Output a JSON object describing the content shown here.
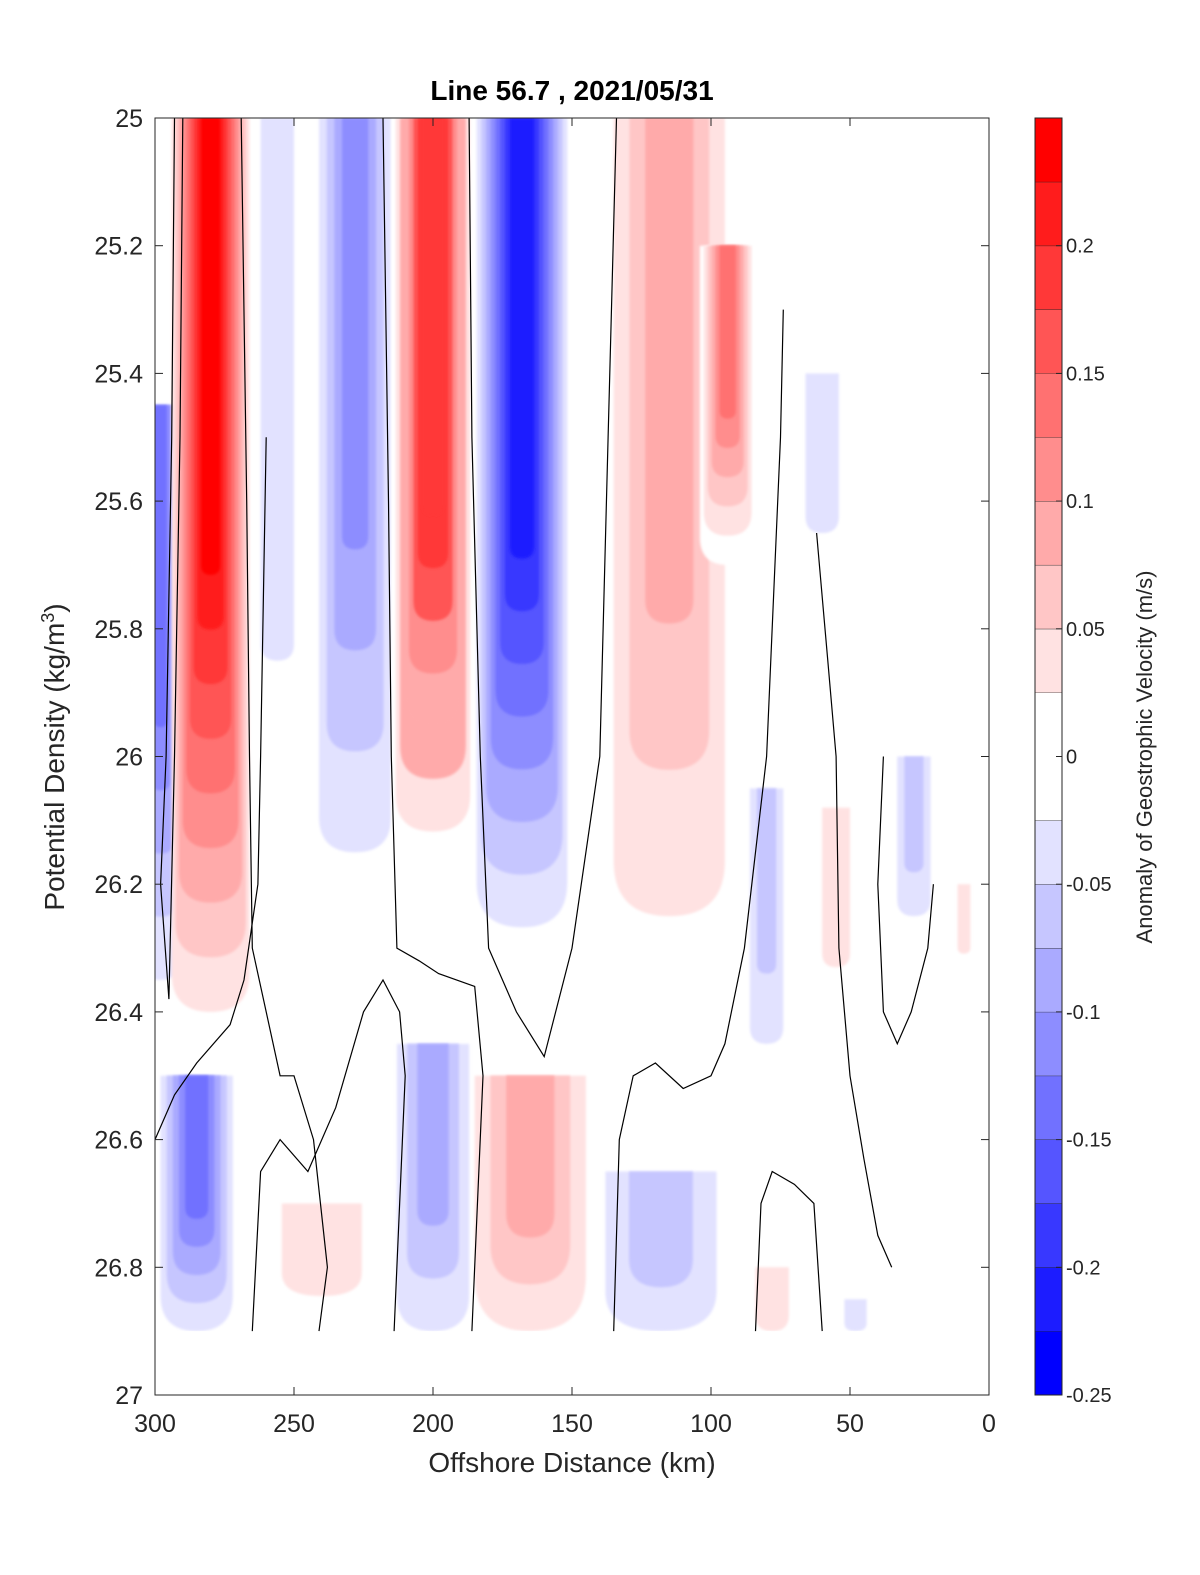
{
  "chart_data": {
    "type": "contourf",
    "title": "Line 56.7 , 2021/05/31",
    "xlabel": "Offshore Distance (km)",
    "ylabel_main": "Potential Density (kg/m",
    "ylabel_sup": "3",
    "ylabel_end": ")",
    "xlim": [
      300,
      0
    ],
    "ylim": [
      25,
      27
    ],
    "x_reversed": true,
    "y_reversed": true,
    "x_ticks": [
      {
        "value": 300,
        "label": "300"
      },
      {
        "value": 250,
        "label": "250"
      },
      {
        "value": 200,
        "label": "200"
      },
      {
        "value": 150,
        "label": "150"
      },
      {
        "value": 100,
        "label": "100"
      },
      {
        "value": 50,
        "label": "50"
      },
      {
        "value": 0,
        "label": "0"
      }
    ],
    "y_ticks": [
      {
        "value": 25.0,
        "label": "25"
      },
      {
        "value": 25.2,
        "label": "25.2"
      },
      {
        "value": 25.4,
        "label": "25.4"
      },
      {
        "value": 25.6,
        "label": "25.6"
      },
      {
        "value": 25.8,
        "label": "25.8"
      },
      {
        "value": 26.0,
        "label": "26"
      },
      {
        "value": 26.2,
        "label": "26.2"
      },
      {
        "value": 26.4,
        "label": "26.4"
      },
      {
        "value": 26.6,
        "label": "26.6"
      },
      {
        "value": 26.8,
        "label": "26.8"
      },
      {
        "value": 27.0,
        "label": "27"
      }
    ],
    "colorbar": {
      "label": "Anomaly of Geostrophic Velocity (m/s)",
      "clim": [
        -0.25,
        0.25
      ],
      "levels": [
        -0.25,
        -0.225,
        -0.2,
        -0.175,
        -0.15,
        -0.125,
        -0.1,
        -0.075,
        -0.05,
        -0.025,
        0.025,
        0.05,
        0.075,
        0.1,
        0.125,
        0.15,
        0.175,
        0.2,
        0.225,
        0.25
      ],
      "colors": [
        "#0000ff",
        "#1c1cff",
        "#3838ff",
        "#5555ff",
        "#7171ff",
        "#8d8dff",
        "#aaaaff",
        "#c6c6ff",
        "#e2e2ff",
        "#ffffff",
        "#ffe2e2",
        "#ffc6c6",
        "#ffaaaa",
        "#ff8d8d",
        "#ff7171",
        "#ff5555",
        "#ff3838",
        "#ff1c1c",
        "#ff0000"
      ],
      "ticks": [
        {
          "value": 0.2,
          "label": "0.2"
        },
        {
          "value": 0.15,
          "label": "0.15"
        },
        {
          "value": 0.1,
          "label": "0.1"
        },
        {
          "value": 0.05,
          "label": "0.05"
        },
        {
          "value": 0,
          "label": "0"
        },
        {
          "value": -0.05,
          "label": "-0.05"
        },
        {
          "value": -0.1,
          "label": "-0.1"
        },
        {
          "value": -0.15,
          "label": "-0.15"
        },
        {
          "value": -0.2,
          "label": "-0.2"
        },
        {
          "value": -0.25,
          "label": "-0.25"
        }
      ]
    },
    "data_extent": {
      "x": [
        300,
        0
      ],
      "y_bottom": 26.9
    },
    "features": [
      {
        "x": 298,
        "y_top": 25.45,
        "y_bottom": 26.35,
        "half_width": 7,
        "peak": -0.13
      },
      {
        "x": 280,
        "y_top": 25.0,
        "y_bottom": 26.4,
        "half_width": 14,
        "peak": 0.24
      },
      {
        "x": 256,
        "y_top": 25.0,
        "y_bottom": 25.85,
        "half_width": 6,
        "peak": -0.03
      },
      {
        "x": 228,
        "y_top": 25.0,
        "y_bottom": 26.15,
        "half_width": 13,
        "peak": -0.11
      },
      {
        "x": 200,
        "y_top": 25.0,
        "y_bottom": 26.2,
        "half_width": 15,
        "peak": 0.2
      },
      {
        "x": 168,
        "y_top": 25.0,
        "y_bottom": 26.35,
        "half_width": 18,
        "peak": -0.22
      },
      {
        "x": 115,
        "y_top": 25.0,
        "y_bottom": 26.25,
        "half_width": 20,
        "peak": 0.09
      },
      {
        "x": 94,
        "y_top": 25.2,
        "y_bottom": 25.7,
        "half_width": 10,
        "peak": 0.15
      },
      {
        "x": 60,
        "y_top": 25.4,
        "y_bottom": 25.65,
        "half_width": 6,
        "peak": -0.04
      },
      {
        "x": 80,
        "y_top": 26.05,
        "y_bottom": 26.45,
        "half_width": 6,
        "peak": -0.06
      },
      {
        "x": 55,
        "y_top": 26.08,
        "y_bottom": 26.33,
        "half_width": 5,
        "peak": 0.04
      },
      {
        "x": 27,
        "y_top": 26.0,
        "y_bottom": 26.25,
        "half_width": 6,
        "peak": -0.05
      },
      {
        "x": 9,
        "y_top": 26.2,
        "y_bottom": 26.35,
        "half_width": 4,
        "peak": 0.05
      },
      {
        "x": 285,
        "y_top": 26.5,
        "y_bottom": 26.9,
        "half_width": 13,
        "peak": -0.13
      },
      {
        "x": 240,
        "y_top": 26.7,
        "y_bottom": 26.9,
        "half_width": 25,
        "peak": 0.05
      },
      {
        "x": 200,
        "y_top": 26.45,
        "y_bottom": 26.9,
        "half_width": 13,
        "peak": -0.09
      },
      {
        "x": 165,
        "y_top": 26.5,
        "y_bottom": 26.9,
        "half_width": 20,
        "peak": 0.08
      },
      {
        "x": 118,
        "y_top": 26.65,
        "y_bottom": 26.9,
        "half_width": 20,
        "peak": -0.05
      },
      {
        "x": 78,
        "y_top": 26.8,
        "y_bottom": 26.9,
        "half_width": 6,
        "peak": 0.03
      },
      {
        "x": 48,
        "y_top": 26.85,
        "y_bottom": 26.9,
        "half_width": 4,
        "peak": -0.03
      }
    ],
    "zero_contours": [
      [
        [
          293,
          25.0
        ],
        [
          294,
          25.5
        ],
        [
          296,
          26.0
        ],
        [
          298,
          26.2
        ],
        [
          295,
          26.38
        ],
        [
          293,
          26.0
        ],
        [
          291,
          25.5
        ],
        [
          290,
          25.0
        ]
      ],
      [
        [
          269,
          25.0
        ],
        [
          267,
          25.6
        ],
        [
          266,
          26.0
        ],
        [
          265,
          26.3
        ],
        [
          260,
          26.4
        ],
        [
          255,
          26.5
        ],
        [
          250,
          26.5
        ],
        [
          243,
          26.6
        ],
        [
          238,
          26.8
        ],
        [
          241,
          26.9
        ]
      ],
      [
        [
          218,
          25.0
        ],
        [
          216,
          25.6
        ],
        [
          215,
          26.0
        ],
        [
          213,
          26.3
        ],
        [
          205,
          26.32
        ],
        [
          198,
          26.34
        ],
        [
          185,
          26.36
        ],
        [
          182,
          26.5
        ],
        [
          186,
          26.9
        ]
      ],
      [
        [
          187,
          25.0
        ],
        [
          186,
          25.5
        ],
        [
          183,
          26.0
        ],
        [
          180,
          26.3
        ],
        [
          170,
          26.4
        ],
        [
          160,
          26.47
        ],
        [
          150,
          26.3
        ],
        [
          140,
          26.0
        ],
        [
          137,
          25.5
        ],
        [
          134,
          25.0
        ]
      ],
      [
        [
          300,
          26.6
        ],
        [
          293,
          26.53
        ],
        [
          285,
          26.48
        ],
        [
          273,
          26.42
        ],
        [
          268,
          26.35
        ],
        [
          263,
          26.2
        ],
        [
          262,
          26.0
        ],
        [
          260,
          25.5
        ]
      ],
      [
        [
          265,
          26.9
        ],
        [
          262,
          26.65
        ],
        [
          255,
          26.6
        ],
        [
          245,
          26.65
        ],
        [
          235,
          26.55
        ],
        [
          225,
          26.4
        ],
        [
          218,
          26.35
        ],
        [
          212,
          26.4
        ],
        [
          210,
          26.5
        ],
        [
          214,
          26.9
        ]
      ],
      [
        [
          135,
          26.9
        ],
        [
          133,
          26.6
        ],
        [
          128,
          26.5
        ],
        [
          120,
          26.48
        ],
        [
          110,
          26.52
        ],
        [
          100,
          26.5
        ],
        [
          95,
          26.45
        ],
        [
          88,
          26.3
        ],
        [
          80,
          26.0
        ],
        [
          75,
          25.5
        ],
        [
          74,
          25.3
        ]
      ],
      [
        [
          62,
          25.65
        ],
        [
          58,
          25.85
        ],
        [
          55,
          26.0
        ],
        [
          54,
          26.3
        ],
        [
          50,
          26.5
        ],
        [
          45,
          26.63
        ],
        [
          40,
          26.75
        ],
        [
          35,
          26.8
        ]
      ],
      [
        [
          38,
          26.0
        ],
        [
          40,
          26.2
        ],
        [
          38,
          26.4
        ],
        [
          33,
          26.45
        ],
        [
          28,
          26.4
        ],
        [
          22,
          26.3
        ],
        [
          20,
          26.2
        ]
      ],
      [
        [
          84,
          26.9
        ],
        [
          82,
          26.7
        ],
        [
          78,
          26.65
        ],
        [
          70,
          26.67
        ],
        [
          63,
          26.7
        ],
        [
          60,
          26.9
        ]
      ]
    ]
  }
}
